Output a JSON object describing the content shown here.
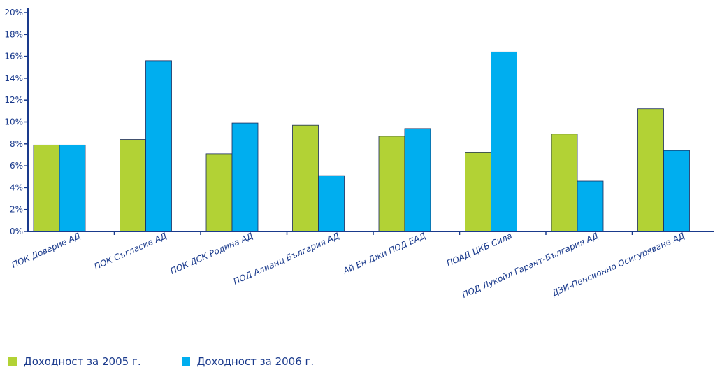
{
  "chart_data": {
    "type": "bar",
    "title": "",
    "xlabel": "",
    "ylabel": "",
    "ylim": [
      0,
      20
    ],
    "yticks": [
      "0%",
      "2%",
      "4%",
      "6%",
      "8%",
      "10%",
      "12%",
      "14%",
      "16%",
      "18%",
      "20%"
    ],
    "categories": [
      "ПОК Доверие АД",
      "ПОК Съгласие АД",
      "ПОК ДСК Родина АД",
      "ПОД Алианц България АД",
      "Ай Ен Джи ПОД ЕАД",
      "ПОАД ЦКБ Сила",
      "ПОД Лукойл Гарант-България АД",
      "ДЗИ-Пенсионно Осигуряване АД"
    ],
    "series": [
      {
        "name": "Доходност за 2005 г.",
        "color": "#b2d235",
        "values": [
          7.9,
          8.4,
          7.1,
          9.7,
          8.7,
          7.2,
          8.9,
          11.2
        ]
      },
      {
        "name": "Доходност за 2006 г.",
        "color": "#00aeef",
        "values": [
          7.9,
          15.6,
          9.9,
          5.1,
          9.4,
          16.4,
          4.6,
          7.4
        ]
      }
    ],
    "grid": false,
    "legend": "bottom-left"
  }
}
